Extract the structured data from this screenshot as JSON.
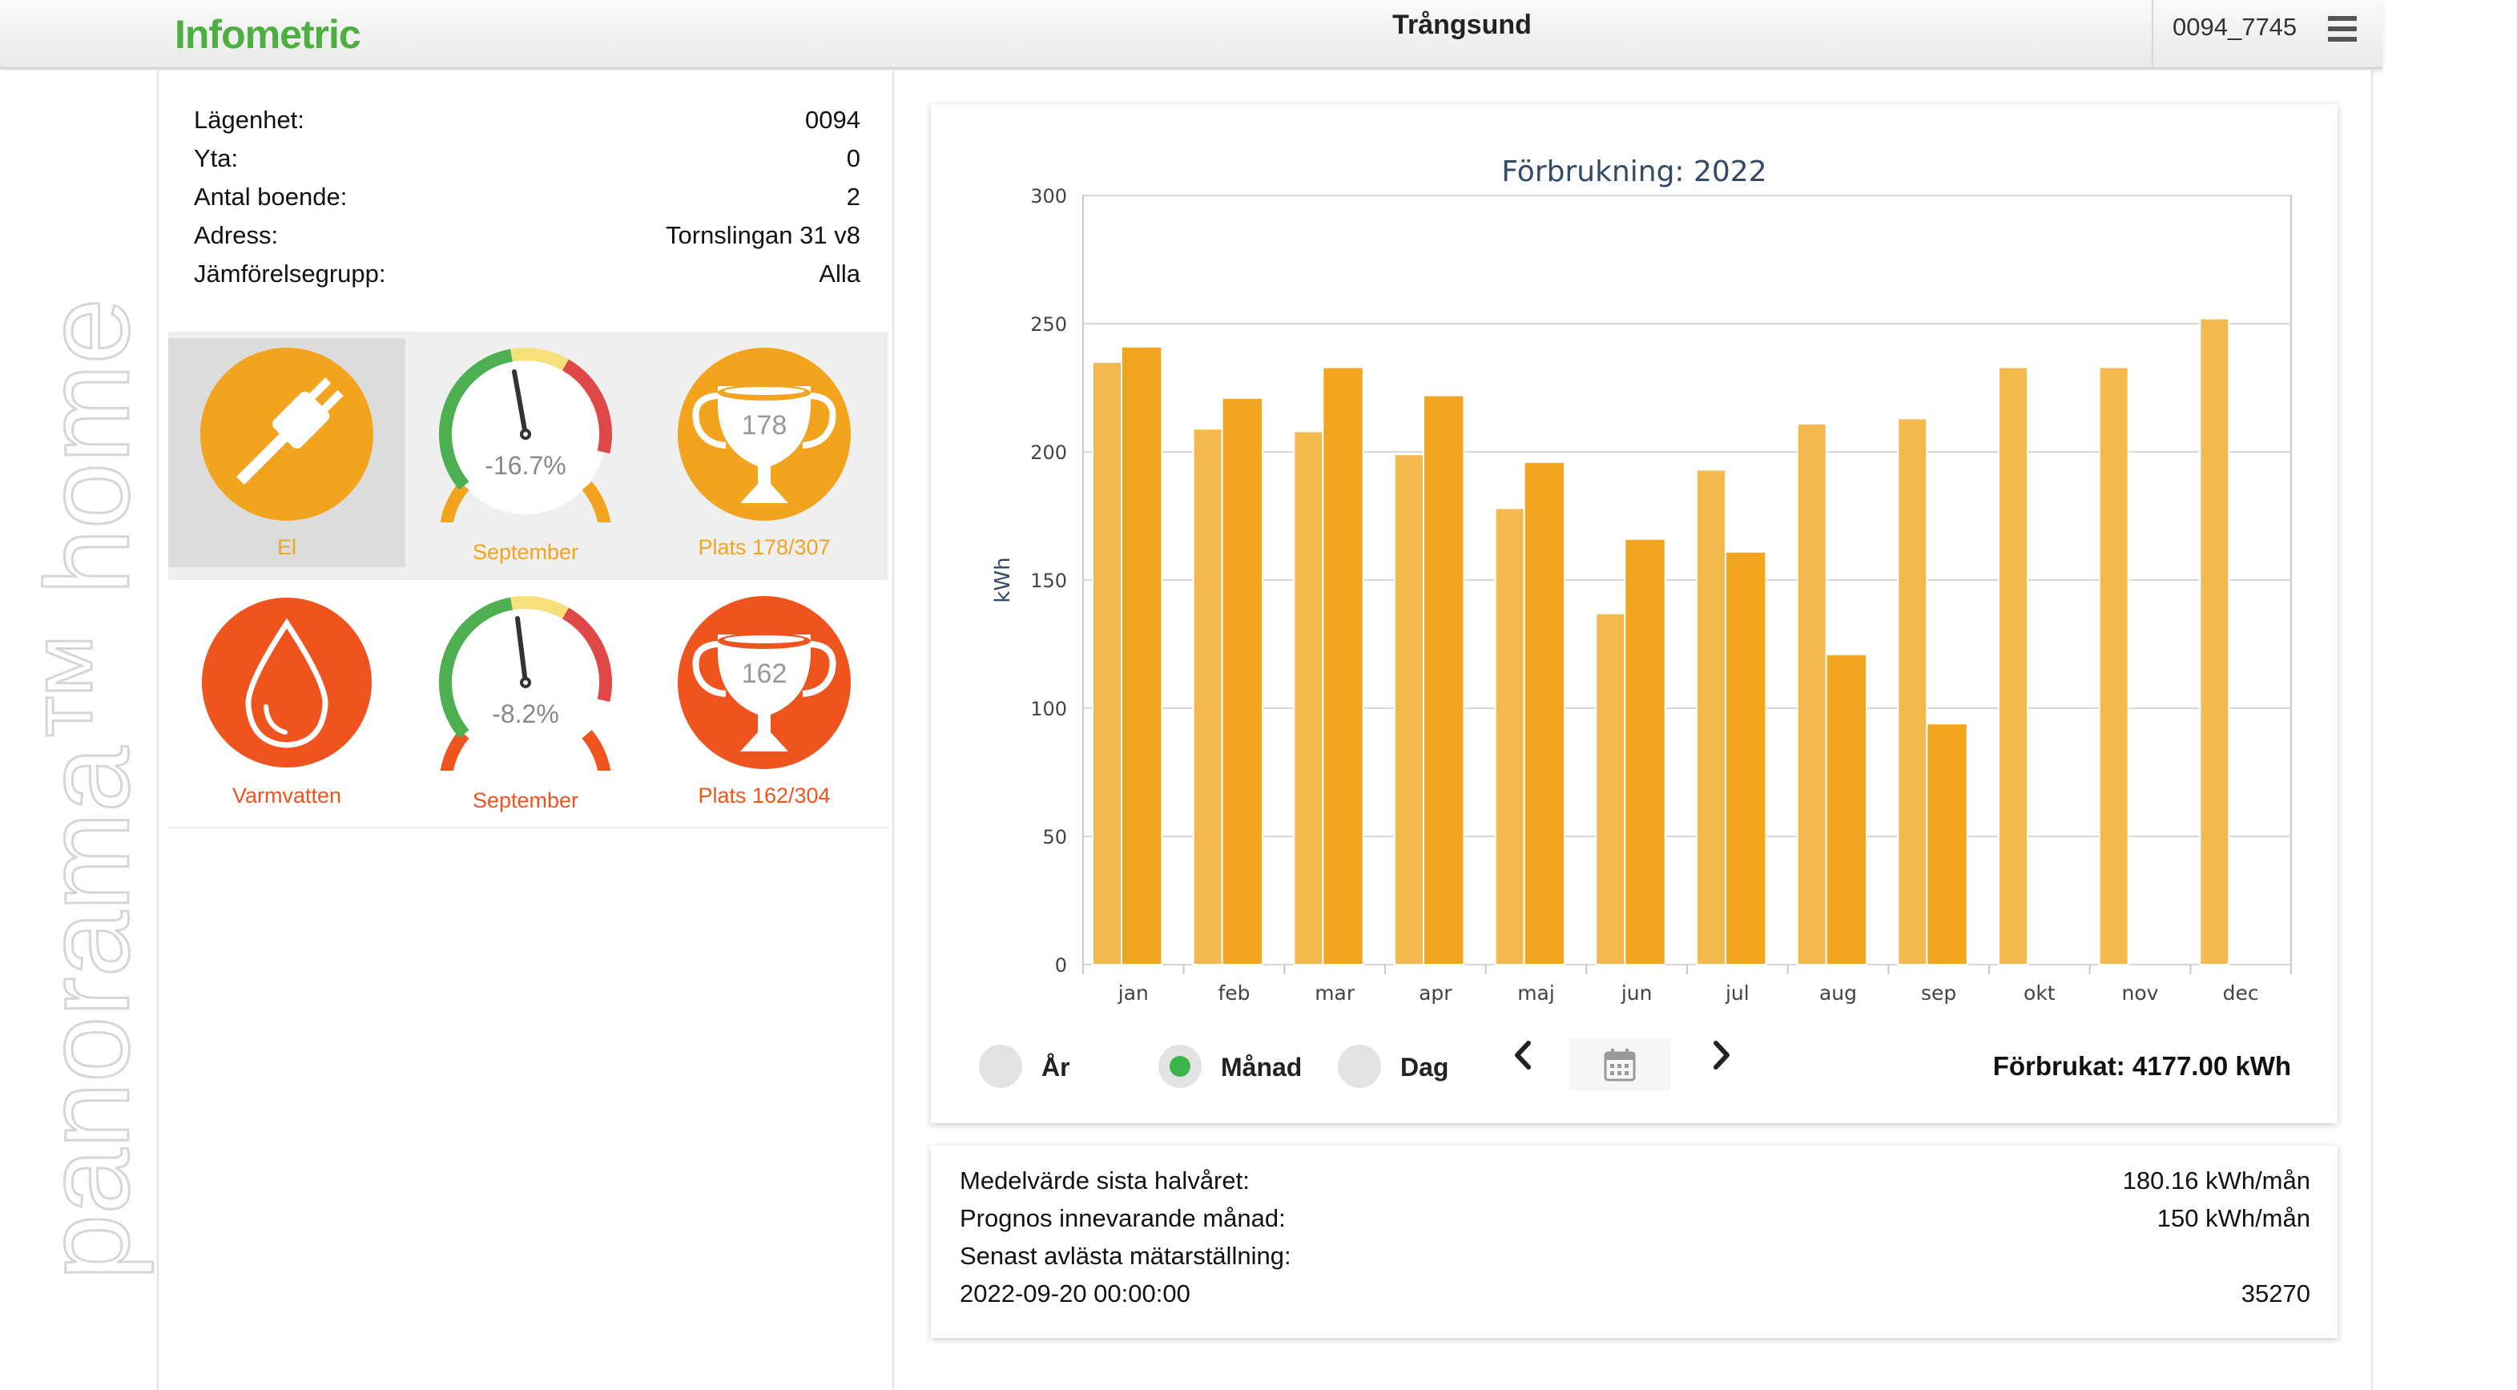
{
  "header": {
    "logo": "Infometric",
    "title": "Trångsund",
    "user_id": "0094_7745"
  },
  "brand_vertical": "panorama™ home",
  "apartment": {
    "rows": [
      {
        "label": "Lägenhet:",
        "value": "0094"
      },
      {
        "label": "Yta:",
        "value": "0"
      },
      {
        "label": "Antal boende:",
        "value": "2"
      },
      {
        "label": "Adress:",
        "value": "Tornslingan 31 v8"
      },
      {
        "label": "Jämförelsegrupp:",
        "value": "Alla"
      }
    ]
  },
  "tiles": {
    "el": {
      "label": "El",
      "gauge_value": "-16.7%",
      "gauge_label": "September",
      "rank": "178",
      "rank_label": "Plats 178/307",
      "color": "#f2a41f"
    },
    "varmvatten": {
      "label": "Varmvatten",
      "gauge_value": "-8.2%",
      "gauge_label": "September",
      "rank": "162",
      "rank_label": "Plats 162/304",
      "color": "#f0541e"
    }
  },
  "chart_data": {
    "type": "bar",
    "title": "Förbrukning: 2022",
    "ylabel": "kWh",
    "xlabel": "",
    "ylim": [
      0,
      300
    ],
    "yticks": [
      "0",
      "50",
      "100",
      "150",
      "200",
      "250",
      "300"
    ],
    "categories": [
      "jan",
      "feb",
      "mar",
      "apr",
      "maj",
      "jun",
      "jul",
      "aug",
      "sep",
      "okt",
      "nov",
      "dec"
    ],
    "series": [
      {
        "values": [
          235,
          209,
          208,
          199,
          178,
          137,
          193,
          211,
          213,
          233,
          233,
          252
        ],
        "color": "#f4b94e"
      },
      {
        "values": [
          241,
          221,
          233,
          222,
          196,
          166,
          161,
          121,
          94,
          null,
          null,
          null
        ],
        "color": "#f2a61f"
      }
    ],
    "grid": true
  },
  "controls": {
    "ar": "År",
    "manad": "Månad",
    "dag": "Dag",
    "selected": "manad",
    "total": "Förbrukat: 4177.00 kWh"
  },
  "stats": {
    "rows": [
      {
        "label": "Medelvärde sista halvåret:",
        "value": "180.16 kWh/mån"
      },
      {
        "label": "Prognos innevarande månad:",
        "value": "150 kWh/mån"
      },
      {
        "label": "Senast avlästa mätarställning:",
        "value": ""
      },
      {
        "label": "2022-09-20 00:00:00",
        "value": "35270"
      }
    ]
  }
}
